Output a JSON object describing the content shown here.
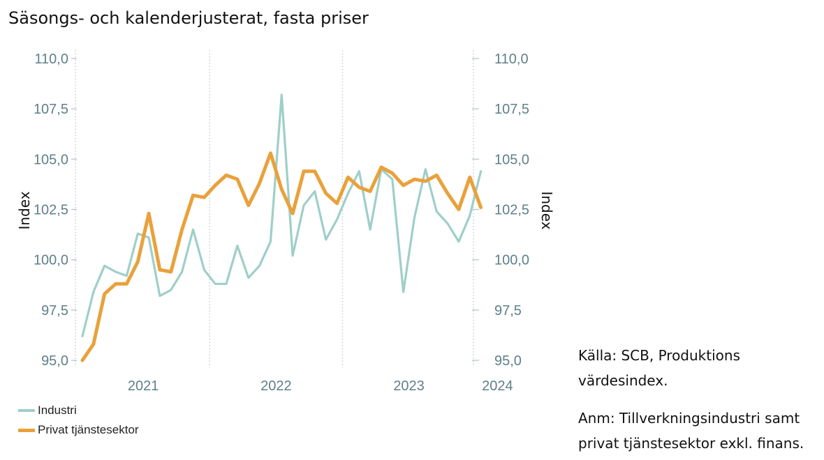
{
  "title": "Säsongs- och kalenderjusterat, fasta priser",
  "legend": {
    "industri": "Industri",
    "tjanst": "Privat tjänstesektor"
  },
  "source_note": {
    "line1": "Källa: SCB, Produktions",
    "line2": "värdesindex."
  },
  "remark_note": {
    "line1": "Anm: Tillverkningsindustri samt",
    "line2": "privat tjänstesektor exkl. finans."
  },
  "colors": {
    "industri": "#9ecfc8",
    "tjanst": "#e9a13b",
    "tick": "#5f7f8a",
    "grid": "#b8c6cc"
  },
  "chart_data": {
    "type": "line",
    "title": "Säsongs- och kalenderjusterat, fasta priser",
    "ylabel": "Index",
    "ylabel_right": "Index",
    "ylim": [
      95.0,
      110.0
    ],
    "yticks": [
      "95,0",
      "97,5",
      "100,0",
      "102,5",
      "105,0",
      "107,5",
      "110,0"
    ],
    "xtick_labels": [
      "2021",
      "2022",
      "2023",
      "2024"
    ],
    "x": [
      "2020-11",
      "2020-12",
      "2021-01",
      "2021-02",
      "2021-03",
      "2021-04",
      "2021-05",
      "2021-06",
      "2021-07",
      "2021-08",
      "2021-09",
      "2021-10",
      "2021-11",
      "2021-12",
      "2022-01",
      "2022-02",
      "2022-03",
      "2022-04",
      "2022-05",
      "2022-06",
      "2022-07",
      "2022-08",
      "2022-09",
      "2022-10",
      "2022-11",
      "2022-12",
      "2023-01",
      "2023-02",
      "2023-03",
      "2023-04",
      "2023-05",
      "2023-06",
      "2023-07",
      "2023-08",
      "2023-09",
      "2023-10",
      "2023-11",
      "2023-12",
      "2024-01",
      "2024-02"
    ],
    "series": [
      {
        "name": "Industri",
        "values": [
          96.2,
          98.4,
          99.7,
          99.4,
          99.2,
          101.3,
          101.1,
          98.2,
          98.5,
          99.4,
          101.5,
          99.5,
          98.8,
          98.8,
          100.7,
          99.1,
          99.7,
          100.9,
          108.2,
          100.2,
          102.7,
          103.4,
          101.0,
          102.0,
          103.3,
          104.4,
          101.5,
          104.5,
          104.0,
          98.4,
          102.1,
          104.5,
          102.4,
          101.8,
          100.9,
          102.2,
          104.4,
          null,
          null,
          null
        ]
      },
      {
        "name": "Privat tjänstesektor",
        "values": [
          95.0,
          95.8,
          98.3,
          98.8,
          98.8,
          99.9,
          102.3,
          99.5,
          99.4,
          101.5,
          103.2,
          103.1,
          103.7,
          104.2,
          104.0,
          102.7,
          103.8,
          105.3,
          103.5,
          102.3,
          104.4,
          104.4,
          103.3,
          102.8,
          104.1,
          103.6,
          103.4,
          104.6,
          104.3,
          103.7,
          104.0,
          103.9,
          104.2,
          103.3,
          102.5,
          104.1,
          102.6,
          null,
          null,
          null
        ]
      }
    ],
    "grid": "vertical dotted at year boundaries",
    "legend_position": "bottom-left"
  }
}
